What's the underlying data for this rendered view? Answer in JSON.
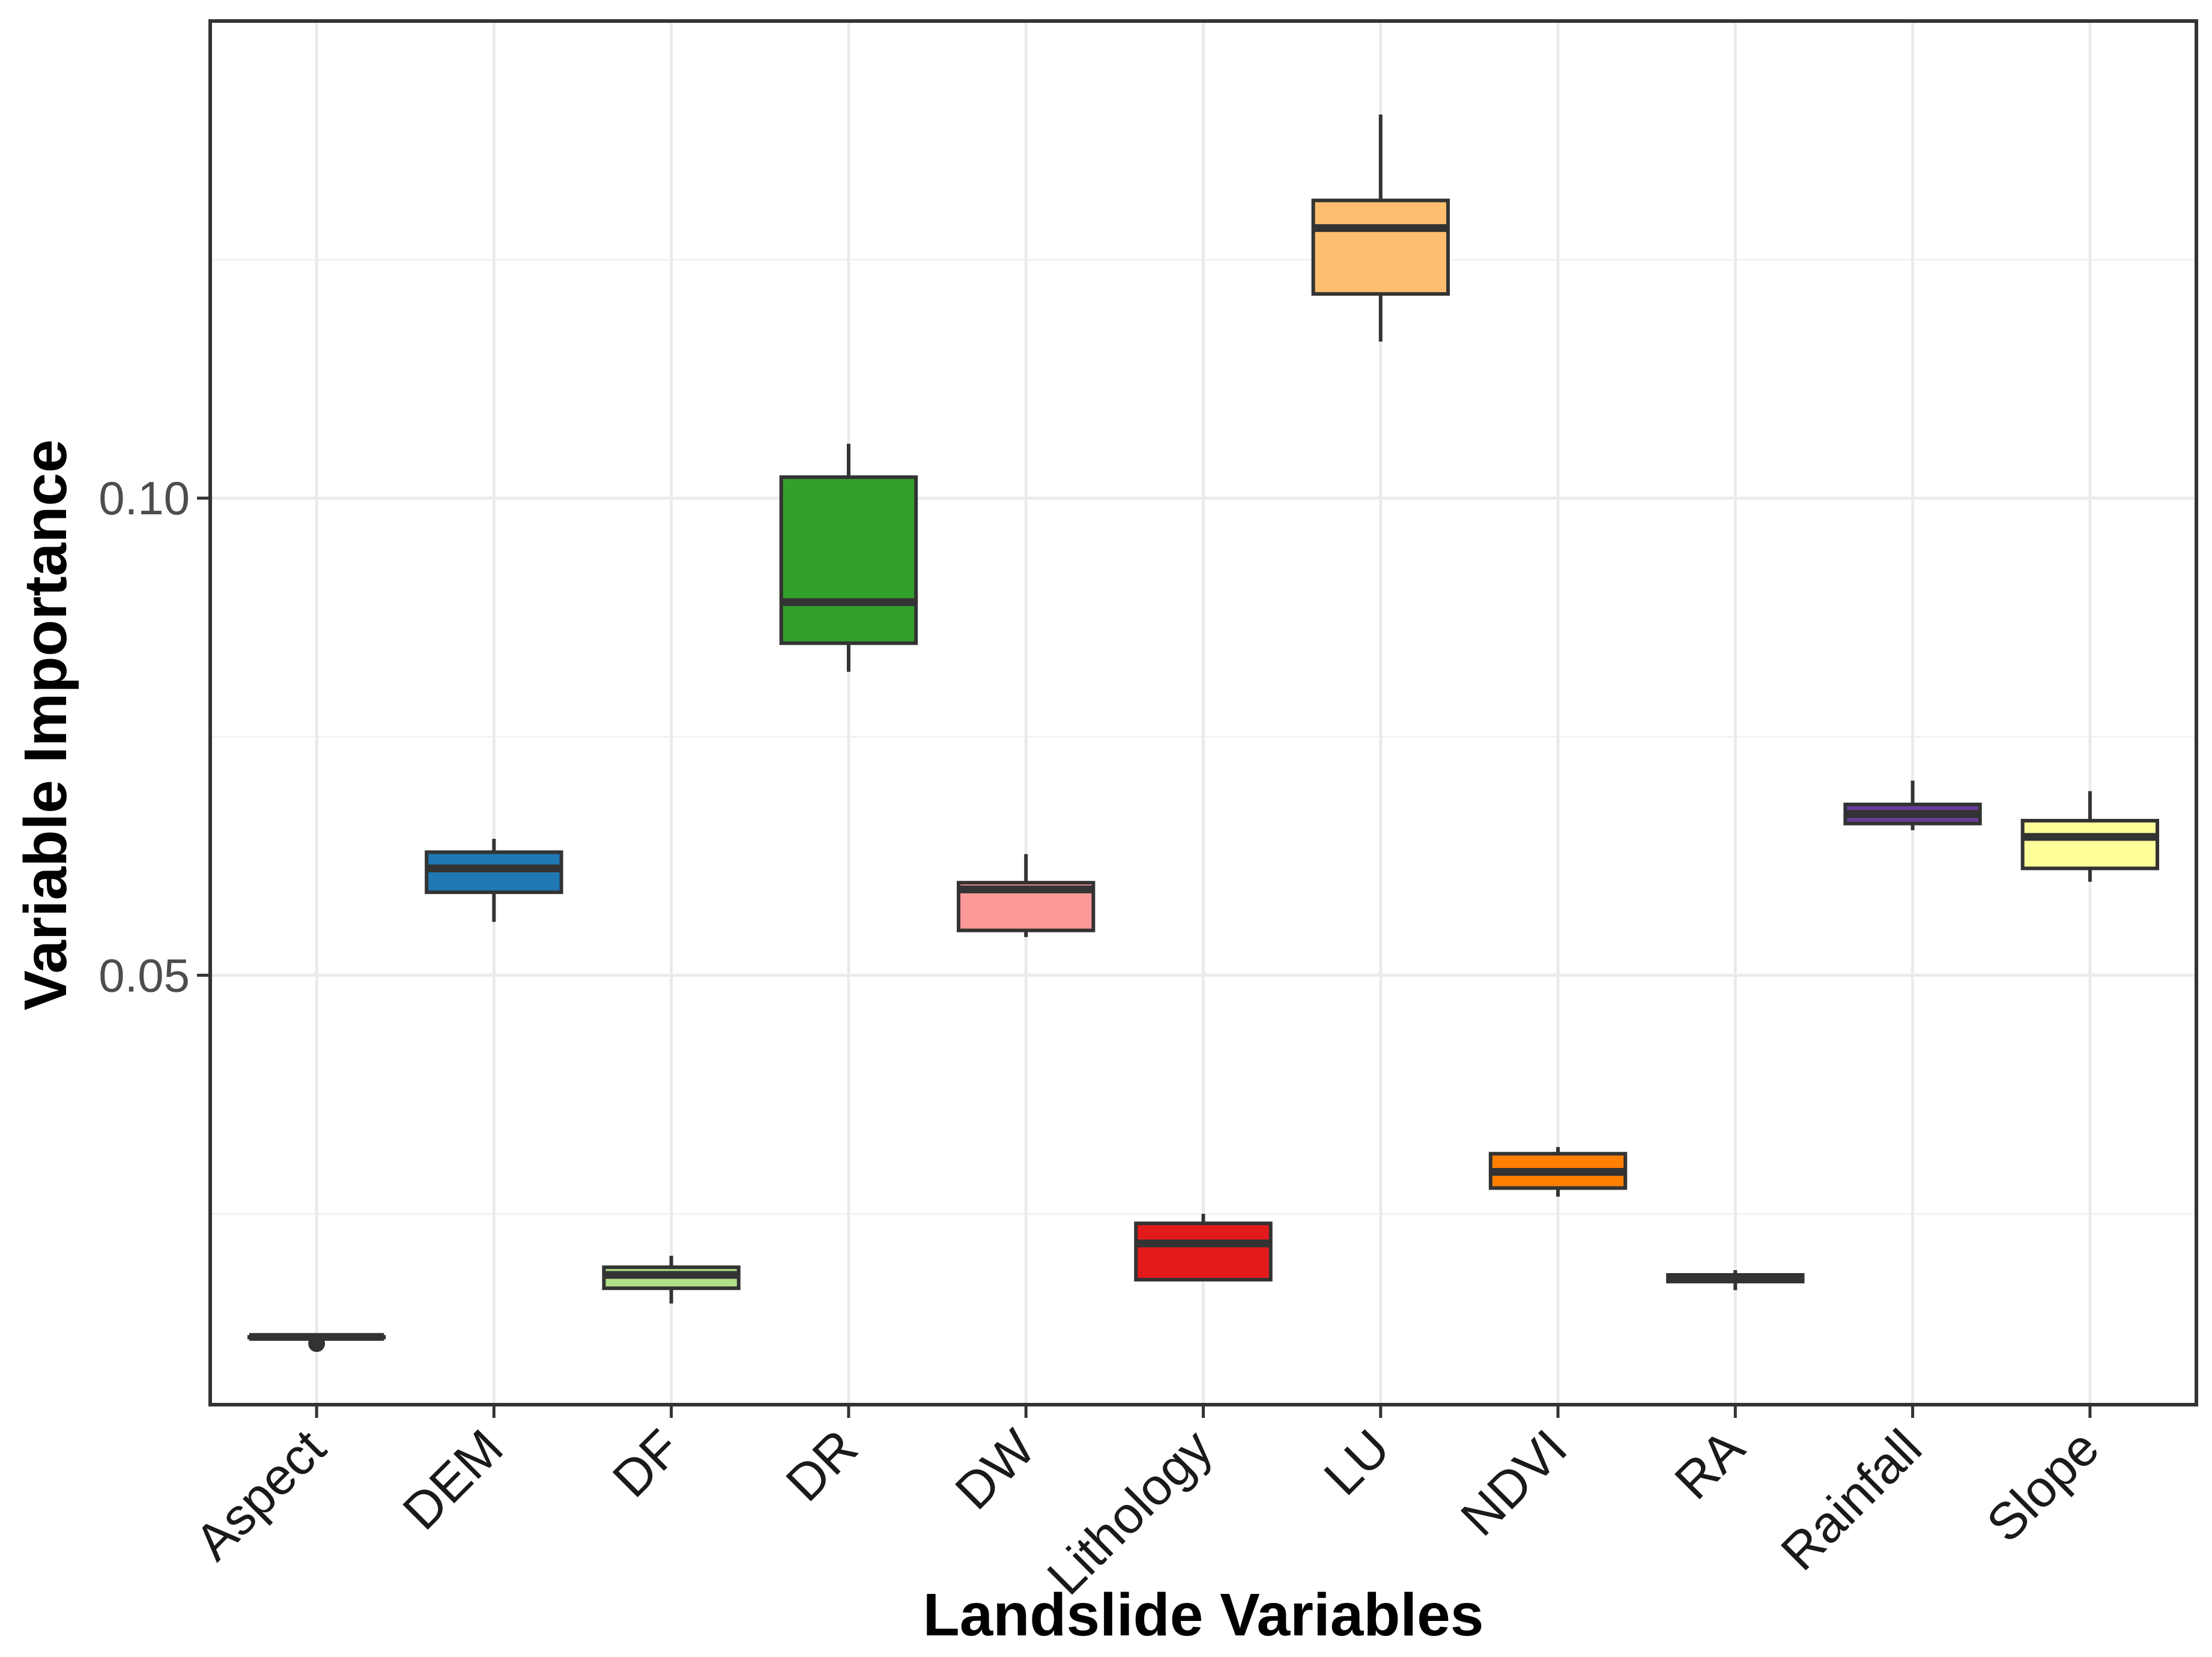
{
  "chart_data": {
    "type": "boxplot",
    "title": "",
    "xlabel": "Landslide Variables",
    "ylabel": "Variable Importance",
    "ylim": [
      0.005,
      0.15
    ],
    "yticks": [
      0.05,
      0.1
    ],
    "ytick_labels": [
      "0.05",
      "0.10"
    ],
    "y_minor_gridlines": [
      0.025,
      0.075,
      0.125
    ],
    "grid": true,
    "categories": [
      "Aspect",
      "DEM",
      "DF",
      "DR",
      "DW",
      "Lithology",
      "LU",
      "NDVI",
      "RA",
      "Rainfall",
      "Slope"
    ],
    "boxes": [
      {
        "name": "Aspect",
        "color": "#ffffff",
        "whisker_low": 0.0121,
        "q1": 0.0121,
        "median": 0.0121,
        "q3": 0.0121,
        "whisker_high": 0.0121,
        "outliers": [
          0.0114
        ]
      },
      {
        "name": "DEM",
        "color": "#1f78b4",
        "whisker_low": 0.0556,
        "q1": 0.0587,
        "median": 0.0612,
        "q3": 0.0629,
        "whisker_high": 0.0643,
        "outliers": []
      },
      {
        "name": "DF",
        "color": "#b2df8a",
        "whisker_low": 0.0156,
        "q1": 0.0172,
        "median": 0.0186,
        "q3": 0.0194,
        "whisker_high": 0.0206,
        "outliers": []
      },
      {
        "name": "DR",
        "color": "#33a02c",
        "whisker_low": 0.0818,
        "q1": 0.0848,
        "median": 0.0891,
        "q3": 0.1022,
        "whisker_high": 0.1057,
        "outliers": []
      },
      {
        "name": "DW",
        "color": "#fb9a99",
        "whisker_low": 0.054,
        "q1": 0.0547,
        "median": 0.059,
        "q3": 0.0597,
        "whisker_high": 0.0627,
        "outliers": []
      },
      {
        "name": "Lithology",
        "color": "#e31a1c",
        "whisker_low": 0.0181,
        "q1": 0.0181,
        "median": 0.0219,
        "q3": 0.024,
        "whisker_high": 0.025,
        "outliers": []
      },
      {
        "name": "LU",
        "color": "#fdbf6f",
        "whisker_low": 0.1164,
        "q1": 0.1214,
        "median": 0.1283,
        "q3": 0.1312,
        "whisker_high": 0.1402,
        "outliers": []
      },
      {
        "name": "NDVI",
        "color": "#ff7f00",
        "whisker_low": 0.0268,
        "q1": 0.0277,
        "median": 0.0294,
        "q3": 0.0313,
        "whisker_high": 0.032,
        "outliers": []
      },
      {
        "name": "RA",
        "color": "#cab2d6",
        "whisker_low": 0.017,
        "q1": 0.0179,
        "median": 0.0182,
        "q3": 0.0186,
        "whisker_high": 0.0191,
        "outliers": []
      },
      {
        "name": "Rainfall",
        "color": "#6a3d9a",
        "whisker_low": 0.0652,
        "q1": 0.0659,
        "median": 0.0669,
        "q3": 0.0679,
        "whisker_high": 0.0704,
        "outliers": []
      },
      {
        "name": "Slope",
        "color": "#ffff99",
        "whisker_low": 0.0598,
        "q1": 0.0612,
        "median": 0.0645,
        "q3": 0.0662,
        "whisker_high": 0.0693,
        "outliers": []
      }
    ]
  }
}
